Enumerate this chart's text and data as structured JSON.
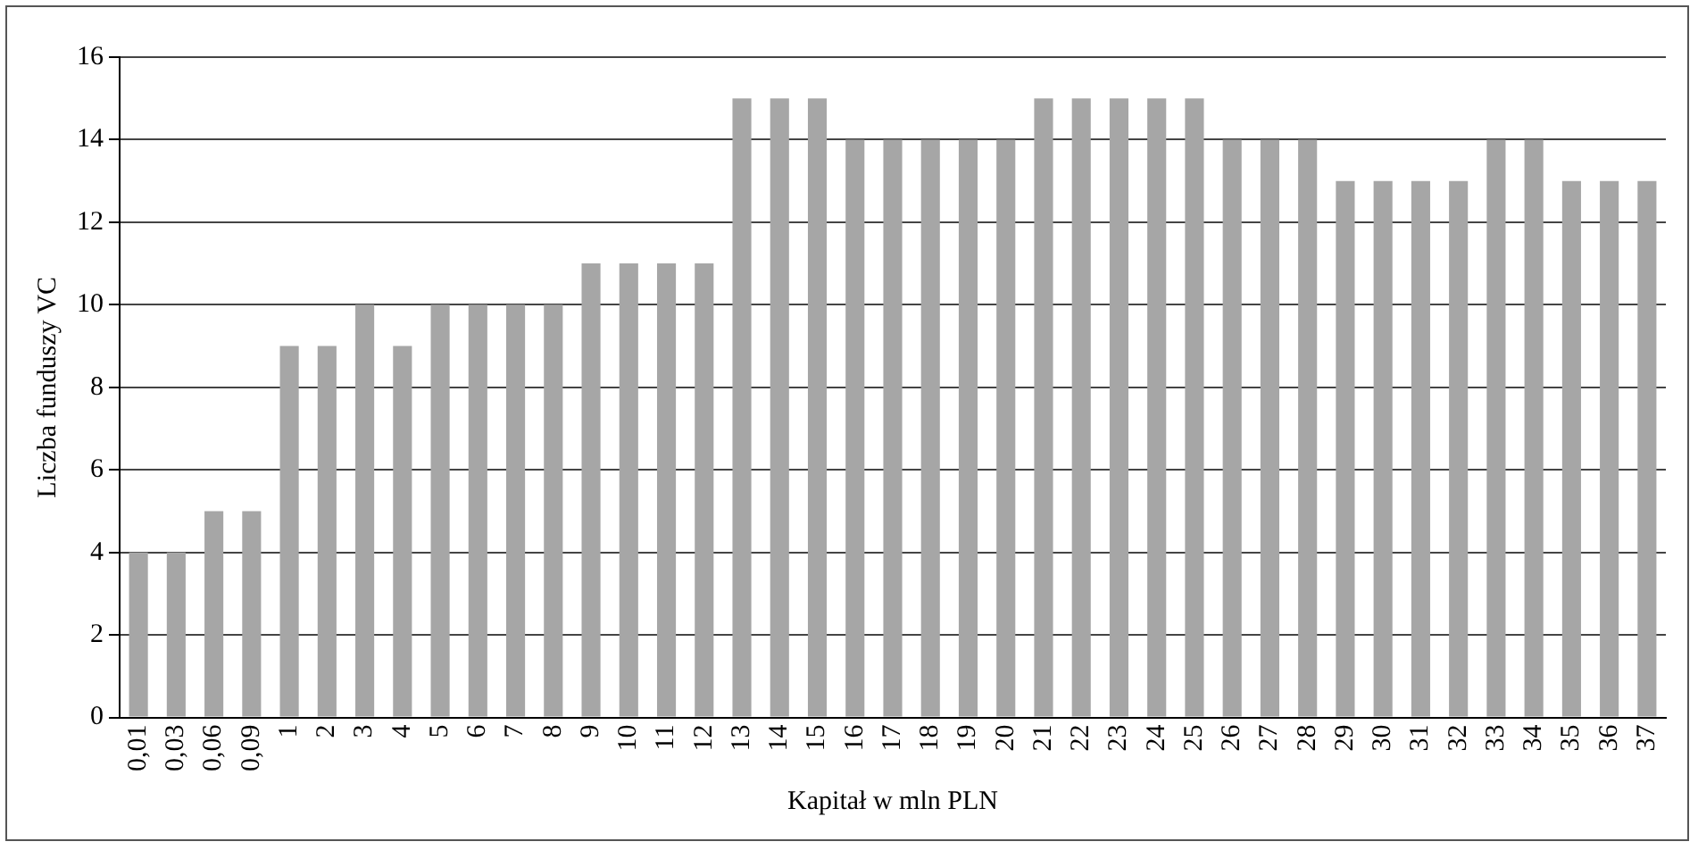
{
  "chart_data": {
    "type": "bar",
    "xlabel": "Kapitał w mln PLN",
    "ylabel": "Liczba funduszy VC",
    "categories": [
      "0,01",
      "0,03",
      "0,06",
      "0,09",
      "1",
      "2",
      "3",
      "4",
      "5",
      "6",
      "7",
      "8",
      "9",
      "10",
      "11",
      "12",
      "13",
      "14",
      "15",
      "16",
      "17",
      "18",
      "19",
      "20",
      "21",
      "22",
      "23",
      "24",
      "25",
      "26",
      "27",
      "28",
      "29",
      "30",
      "31",
      "32",
      "33",
      "34",
      "35",
      "36",
      "37"
    ],
    "values": [
      4,
      4,
      5,
      5,
      9,
      9,
      10,
      9,
      10,
      10,
      10,
      10,
      11,
      11,
      11,
      11,
      15,
      15,
      15,
      14,
      14,
      14,
      14,
      14,
      15,
      15,
      15,
      15,
      15,
      14,
      14,
      14,
      13,
      13,
      13,
      13,
      14,
      14,
      13,
      13,
      13
    ],
    "color": "#a6a6a6",
    "ylim": [
      0,
      16
    ],
    "yticks": [
      0,
      2,
      4,
      6,
      8,
      10,
      12,
      14,
      16
    ],
    "grid": "y",
    "legend": false
  }
}
